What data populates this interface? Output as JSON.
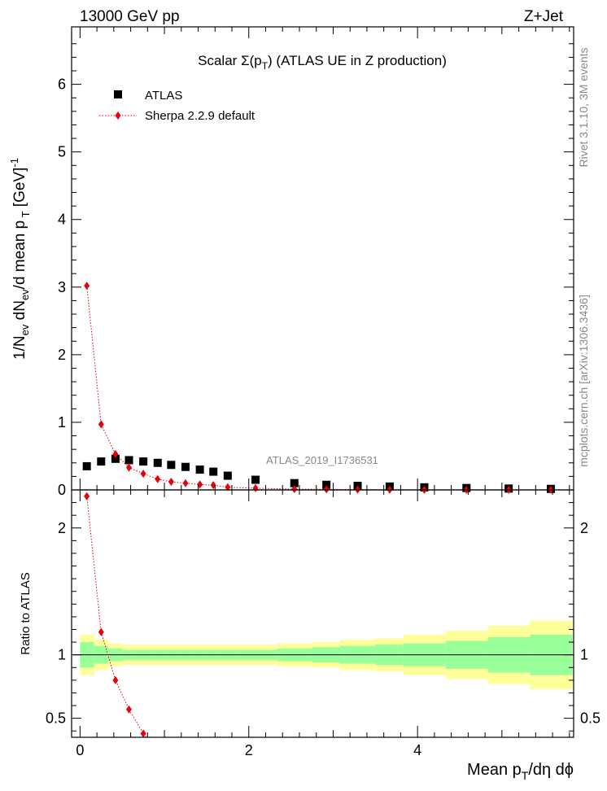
{
  "header": {
    "left": "13000 GeV pp",
    "right": "Z+Jet"
  },
  "side_labels": {
    "rivet": "Rivet 3.1.10,  3M events",
    "mcplots": "mcplots.cern.ch [arXiv:1306.3436]"
  },
  "chart_data": {
    "type": "scatter",
    "title_parts": {
      "prefix": "Scalar ",
      "sigma": "Σ(p",
      "sub": "T",
      "close": ")",
      "suffix": " (ATLAS UE in Z production)"
    },
    "analysis_id": "ATLAS_2019_I1736531",
    "xlabel": {
      "main": "Mean p",
      "sub": "T",
      "rest": "/dη dϕ"
    },
    "ylabel": {
      "part1": "1/N",
      "sub1": "ev",
      "part2": " dN",
      "sub2": "ev",
      "part3": "/d mean p",
      "sub3": " T",
      "part4": " [GeV]",
      "sup": "-1"
    },
    "ratio_ylabel": "Ratio to ATLAS",
    "xlim": [
      -0.1,
      5.85
    ],
    "ylim": [
      0,
      6.85
    ],
    "ratio_ylim": [
      0.35,
      2.3
    ],
    "x_ticks": [
      "0",
      "2",
      "4"
    ],
    "y_ticks": [
      "0",
      "1",
      "2",
      "3",
      "4",
      "5",
      "6"
    ],
    "ratio_ticks": [
      "0.5",
      "1",
      "2"
    ],
    "legend": [
      {
        "name": "ATLAS",
        "color": "#000000",
        "marker": "square"
      },
      {
        "name": "Sherpa 2.2.9 default",
        "color": "#e8000b",
        "marker": "diamond"
      }
    ],
    "bins": [
      {
        "lo": 0.0,
        "hi": 0.167
      },
      {
        "lo": 0.167,
        "hi": 0.333
      },
      {
        "lo": 0.333,
        "hi": 0.5
      },
      {
        "lo": 0.5,
        "hi": 0.667
      },
      {
        "lo": 0.667,
        "hi": 0.833
      },
      {
        "lo": 0.833,
        "hi": 1.0
      },
      {
        "lo": 1.0,
        "hi": 1.167
      },
      {
        "lo": 1.167,
        "hi": 1.333
      },
      {
        "lo": 1.333,
        "hi": 1.5
      },
      {
        "lo": 1.5,
        "hi": 1.667
      },
      {
        "lo": 1.667,
        "hi": 1.833
      },
      {
        "lo": 1.833,
        "hi": 2.333
      },
      {
        "lo": 2.333,
        "hi": 2.75
      },
      {
        "lo": 2.75,
        "hi": 3.083
      },
      {
        "lo": 3.083,
        "hi": 3.5
      },
      {
        "lo": 3.5,
        "hi": 3.833
      },
      {
        "lo": 3.833,
        "hi": 4.333
      },
      {
        "lo": 4.333,
        "hi": 4.833
      },
      {
        "lo": 4.833,
        "hi": 5.333
      },
      {
        "lo": 5.333,
        "hi": 5.833
      }
    ],
    "series": [
      {
        "name": "ATLAS",
        "x": [
          0.08,
          0.25,
          0.42,
          0.58,
          0.75,
          0.92,
          1.08,
          1.25,
          1.42,
          1.58,
          1.75,
          2.08,
          2.54,
          2.92,
          3.29,
          3.67,
          4.08,
          4.58,
          5.08,
          5.58
        ],
        "y": [
          0.35,
          0.42,
          0.46,
          0.44,
          0.42,
          0.4,
          0.37,
          0.34,
          0.3,
          0.27,
          0.21,
          0.15,
          0.1,
          0.075,
          0.06,
          0.05,
          0.038,
          0.028,
          0.02,
          0.015
        ]
      },
      {
        "name": "Sherpa 2.2.9 default",
        "x": [
          0.08,
          0.25,
          0.42,
          0.58,
          0.75,
          0.92,
          1.08,
          1.25,
          1.42,
          1.58,
          1.75,
          2.08,
          2.54,
          2.92,
          3.29,
          3.67,
          4.08,
          4.58,
          5.08,
          5.58
        ],
        "y": [
          3.02,
          0.97,
          0.53,
          0.33,
          0.24,
          0.16,
          0.12,
          0.1,
          0.08,
          0.07,
          0.04,
          0.025,
          0.012,
          0.008,
          0.005,
          0.003,
          0.002,
          0.0015,
          0.001,
          0.0008
        ],
        "ratio": [
          2.25,
          1.18,
          0.8,
          0.57,
          0.38
        ]
      }
    ],
    "ratio_bands": {
      "inner_half_width": [
        0.1,
        0.07,
        0.05,
        0.04,
        0.04,
        0.04,
        0.04,
        0.04,
        0.04,
        0.04,
        0.04,
        0.04,
        0.05,
        0.06,
        0.07,
        0.08,
        0.09,
        0.11,
        0.14,
        0.16
      ],
      "outer_half_width": [
        0.16,
        0.12,
        0.09,
        0.08,
        0.08,
        0.08,
        0.08,
        0.08,
        0.08,
        0.08,
        0.08,
        0.08,
        0.09,
        0.1,
        0.12,
        0.13,
        0.16,
        0.19,
        0.23,
        0.27
      ],
      "inner_color": "#99ff99",
      "outer_color": "#ffff99"
    }
  }
}
